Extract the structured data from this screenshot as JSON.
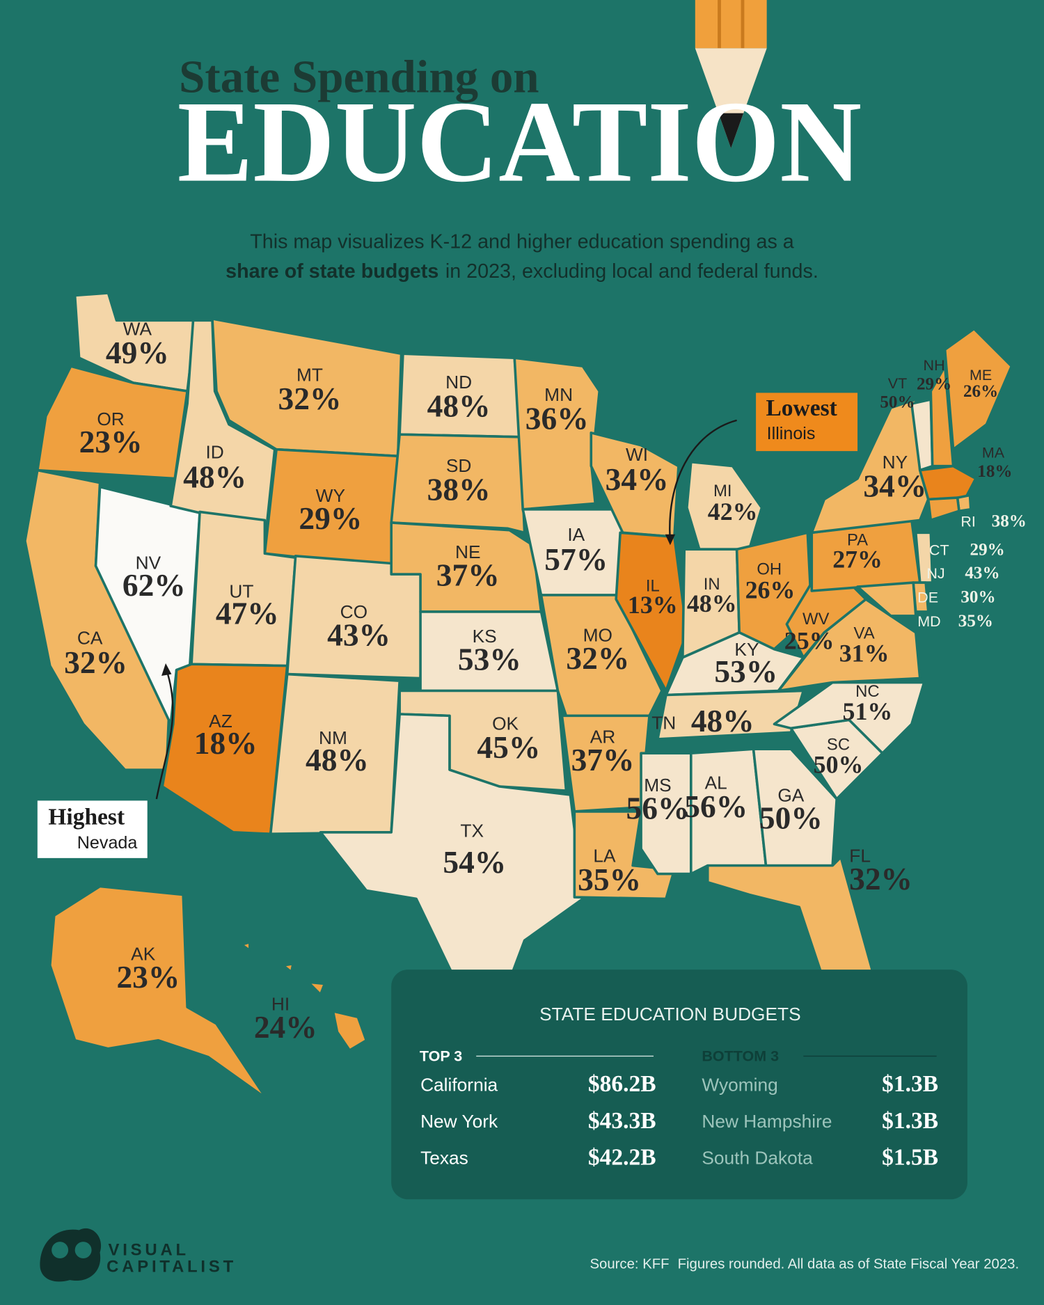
{
  "header": {
    "title_line1": "State Spending on",
    "title_line2": "EDUCATION",
    "subtitle_line1": "This map visualizes K-12 and higher education spending as a",
    "subtitle_line2_bold": "share of state budgets",
    "subtitle_line2_rest": "in 2023, excluding local and federal funds."
  },
  "states": [
    {
      "abbr": "WA",
      "value": 49,
      "label": "49%"
    },
    {
      "abbr": "OR",
      "value": 23,
      "label": "23%"
    },
    {
      "abbr": "CA",
      "value": 32,
      "label": "32%"
    },
    {
      "abbr": "NV",
      "value": 62,
      "label": "62%"
    },
    {
      "abbr": "ID",
      "value": 48,
      "label": "48%"
    },
    {
      "abbr": "MT",
      "value": 32,
      "label": "32%"
    },
    {
      "abbr": "WY",
      "value": 29,
      "label": "29%"
    },
    {
      "abbr": "UT",
      "value": 47,
      "label": "47%"
    },
    {
      "abbr": "CO",
      "value": 43,
      "label": "43%"
    },
    {
      "abbr": "AZ",
      "value": 18,
      "label": "18%"
    },
    {
      "abbr": "NM",
      "value": 48,
      "label": "48%"
    },
    {
      "abbr": "ND",
      "value": 48,
      "label": "48%"
    },
    {
      "abbr": "SD",
      "value": 38,
      "label": "38%"
    },
    {
      "abbr": "NE",
      "value": 37,
      "label": "37%"
    },
    {
      "abbr": "KS",
      "value": 53,
      "label": "53%"
    },
    {
      "abbr": "OK",
      "value": 45,
      "label": "45%"
    },
    {
      "abbr": "TX",
      "value": 54,
      "label": "54%"
    },
    {
      "abbr": "MN",
      "value": 36,
      "label": "36%"
    },
    {
      "abbr": "IA",
      "value": 57,
      "label": "57%"
    },
    {
      "abbr": "MO",
      "value": 32,
      "label": "32%"
    },
    {
      "abbr": "AR",
      "value": 37,
      "label": "37%"
    },
    {
      "abbr": "LA",
      "value": 35,
      "label": "35%"
    },
    {
      "abbr": "WI",
      "value": 34,
      "label": "34%"
    },
    {
      "abbr": "IL",
      "value": 13,
      "label": "13%"
    },
    {
      "abbr": "MI",
      "value": 42,
      "label": "42%"
    },
    {
      "abbr": "IN",
      "value": 48,
      "label": "48%"
    },
    {
      "abbr": "OH",
      "value": 26,
      "label": "26%"
    },
    {
      "abbr": "KY",
      "value": 53,
      "label": "53%"
    },
    {
      "abbr": "TN",
      "value": 48,
      "label": "48%"
    },
    {
      "abbr": "MS",
      "value": 56,
      "label": "56%"
    },
    {
      "abbr": "AL",
      "value": 56,
      "label": "56%"
    },
    {
      "abbr": "GA",
      "value": 50,
      "label": "50%"
    },
    {
      "abbr": "FL",
      "value": 32,
      "label": "32%"
    },
    {
      "abbr": "SC",
      "value": 50,
      "label": "50%"
    },
    {
      "abbr": "NC",
      "value": 51,
      "label": "51%"
    },
    {
      "abbr": "VA",
      "value": 31,
      "label": "31%"
    },
    {
      "abbr": "WV",
      "value": 25,
      "label": "25%"
    },
    {
      "abbr": "PA",
      "value": 27,
      "label": "27%"
    },
    {
      "abbr": "NY",
      "value": 34,
      "label": "34%"
    },
    {
      "abbr": "VT",
      "value": 50,
      "label": "50%"
    },
    {
      "abbr": "NH",
      "value": 29,
      "label": "29%"
    },
    {
      "abbr": "ME",
      "value": 26,
      "label": "26%"
    },
    {
      "abbr": "MA",
      "value": 18,
      "label": "18%"
    },
    {
      "abbr": "RI",
      "value": 38,
      "label": "38%"
    },
    {
      "abbr": "CT",
      "value": 29,
      "label": "29%"
    },
    {
      "abbr": "NJ",
      "value": 43,
      "label": "43%"
    },
    {
      "abbr": "DE",
      "value": 30,
      "label": "30%"
    },
    {
      "abbr": "MD",
      "value": 35,
      "label": "35%"
    },
    {
      "abbr": "AK",
      "value": 23,
      "label": "23%"
    },
    {
      "abbr": "HI",
      "value": 24,
      "label": "24%"
    }
  ],
  "callouts": {
    "lowest": {
      "title": "Lowest",
      "state": "Illinois"
    },
    "highest": {
      "title": "Highest",
      "state": "Nevada"
    }
  },
  "budget_table": {
    "title": "STATE EDUCATION BUDGETS",
    "top": {
      "heading": "TOP 3",
      "rows": [
        [
          "California",
          "$86.2B"
        ],
        [
          "New York",
          "$43.3B"
        ],
        [
          "Texas",
          "$42.2B"
        ]
      ]
    },
    "bottom": {
      "heading": "BOTTOM 3",
      "rows": [
        [
          "Wyoming",
          "$1.3B"
        ],
        [
          "New Hampshire",
          "$1.3B"
        ],
        [
          "South Dakota",
          "$1.5B"
        ]
      ]
    }
  },
  "footer": {
    "logo_line1": "VISUAL",
    "logo_line2": "CAPITALIST",
    "source": "Source: KFF",
    "note": "Figures rounded. All data as of State Fiscal Year 2023."
  }
}
